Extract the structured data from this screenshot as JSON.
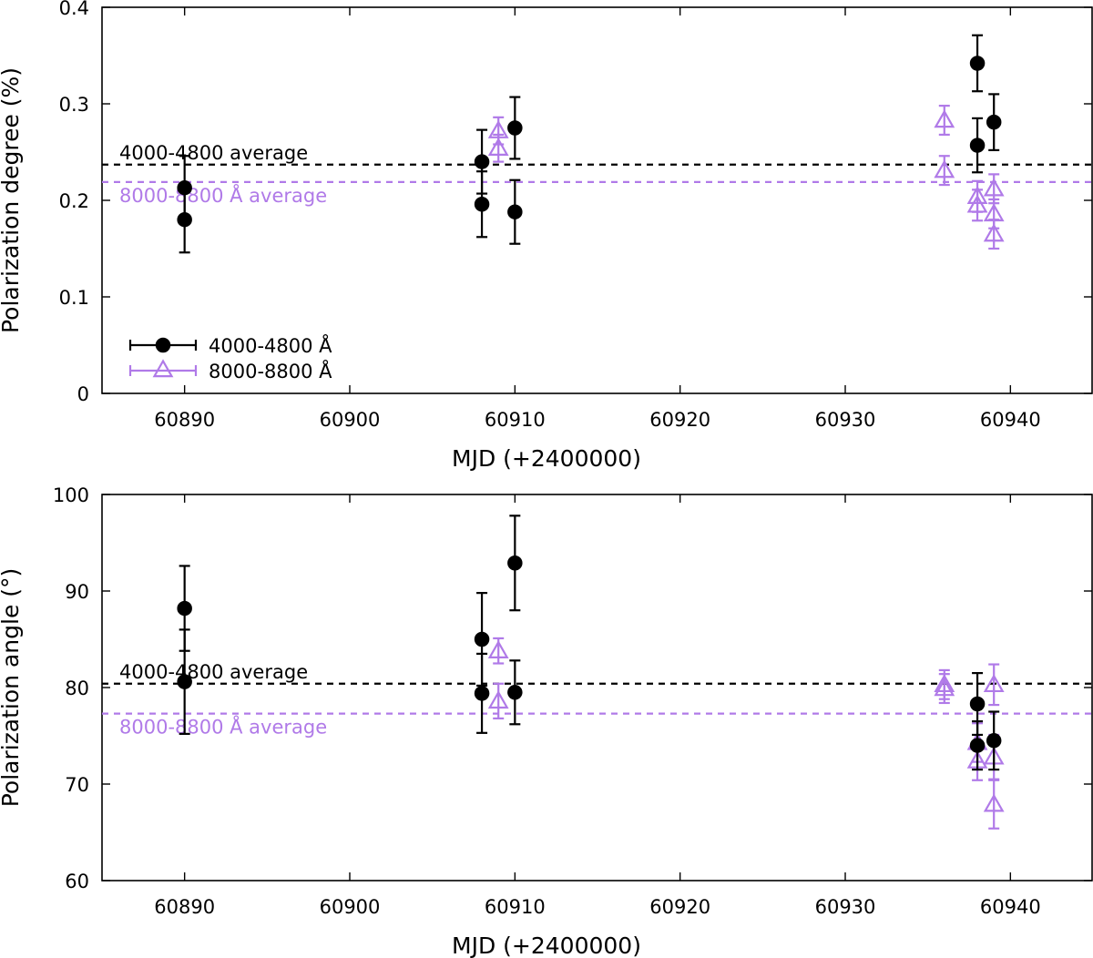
{
  "colors": {
    "blue_band": "#000000",
    "red_band": "#b07ae8"
  },
  "legend": {
    "entries": [
      {
        "series": "blue",
        "label": "4000-4800 Å",
        "marker": "filled-circle"
      },
      {
        "series": "red",
        "label": "8000-8800 Å",
        "marker": "open-triangle"
      }
    ]
  },
  "chart_data": [
    {
      "type": "scatter",
      "panel": "top",
      "xlabel": "MJD (+2400000)",
      "ylabel": "Polarization degree (%)",
      "xlim": [
        60885,
        60945
      ],
      "ylim": [
        0,
        0.4
      ],
      "xticks": [
        "60890",
        "60900",
        "60910",
        "60920",
        "60930",
        "60940"
      ],
      "yticks": [
        "0",
        "0.1",
        "0.2",
        "0.3",
        "0.4"
      ],
      "averages": [
        {
          "series": "blue",
          "value": 0.237,
          "label": "4000-4800 average"
        },
        {
          "series": "red",
          "value": 0.219,
          "label": "8000-8800 Å average"
        }
      ],
      "series": [
        {
          "name": "4000-4800 Å",
          "key": "blue",
          "points": [
            {
              "x": 60890,
              "y": 0.213,
              "err": 0.033
            },
            {
              "x": 60890,
              "y": 0.18,
              "err": 0.034
            },
            {
              "x": 60908,
              "y": 0.24,
              "err": 0.033
            },
            {
              "x": 60908,
              "y": 0.196,
              "err": 0.034
            },
            {
              "x": 60910,
              "y": 0.275,
              "err": 0.032
            },
            {
              "x": 60910,
              "y": 0.188,
              "err": 0.033
            },
            {
              "x": 60938,
              "y": 0.342,
              "err": 0.029
            },
            {
              "x": 60938,
              "y": 0.257,
              "err": 0.028
            },
            {
              "x": 60939,
              "y": 0.281,
              "err": 0.029
            }
          ]
        },
        {
          "name": "8000-8800 Å",
          "key": "red",
          "points": [
            {
              "x": 60909,
              "y": 0.272,
              "err": 0.014
            },
            {
              "x": 60909,
              "y": 0.254,
              "err": 0.014
            },
            {
              "x": 60936,
              "y": 0.283,
              "err": 0.015
            },
            {
              "x": 60936,
              "y": 0.231,
              "err": 0.015
            },
            {
              "x": 60938,
              "y": 0.204,
              "err": 0.016
            },
            {
              "x": 60938,
              "y": 0.195,
              "err": 0.016
            },
            {
              "x": 60939,
              "y": 0.212,
              "err": 0.015
            },
            {
              "x": 60939,
              "y": 0.186,
              "err": 0.015
            },
            {
              "x": 60939,
              "y": 0.165,
              "err": 0.015
            }
          ]
        }
      ]
    },
    {
      "type": "scatter",
      "panel": "bottom",
      "xlabel": "MJD (+2400000)",
      "ylabel": "Polarization angle (°)",
      "xlim": [
        60885,
        60945
      ],
      "ylim": [
        60,
        100
      ],
      "xticks": [
        "60890",
        "60900",
        "60910",
        "60920",
        "60930",
        "60940"
      ],
      "yticks": [
        "60",
        "70",
        "80",
        "90",
        "100"
      ],
      "averages": [
        {
          "series": "blue",
          "value": 80.4,
          "label": "4000-4800 average"
        },
        {
          "series": "red",
          "value": 77.3,
          "label": "8000-8800 Å average"
        }
      ],
      "series": [
        {
          "name": "4000-4800 Å",
          "key": "blue",
          "points": [
            {
              "x": 60890,
              "y": 88.2,
              "err": 4.4
            },
            {
              "x": 60890,
              "y": 80.6,
              "err": 5.4
            },
            {
              "x": 60908,
              "y": 85.0,
              "err": 4.8
            },
            {
              "x": 60908,
              "y": 79.4,
              "err": 4.1
            },
            {
              "x": 60910,
              "y": 92.9,
              "err": 4.9
            },
            {
              "x": 60910,
              "y": 79.5,
              "err": 3.3
            },
            {
              "x": 60938,
              "y": 78.3,
              "err": 3.2
            },
            {
              "x": 60938,
              "y": 74.0,
              "err": 2.5
            },
            {
              "x": 60939,
              "y": 74.5,
              "err": 3.0
            }
          ]
        },
        {
          "name": "8000-8800 Å",
          "key": "red",
          "points": [
            {
              "x": 60909,
              "y": 83.8,
              "err": 1.3
            },
            {
              "x": 60909,
              "y": 78.6,
              "err": 1.8
            },
            {
              "x": 60936,
              "y": 80.3,
              "err": 1.5
            },
            {
              "x": 60936,
              "y": 79.9,
              "err": 1.5
            },
            {
              "x": 60938,
              "y": 74.3,
              "err": 2.0
            },
            {
              "x": 60938,
              "y": 72.4,
              "err": 2.0
            },
            {
              "x": 60939,
              "y": 80.3,
              "err": 2.1
            },
            {
              "x": 60939,
              "y": 72.8,
              "err": 2.3
            },
            {
              "x": 60939,
              "y": 67.9,
              "err": 2.5
            }
          ]
        }
      ]
    }
  ]
}
